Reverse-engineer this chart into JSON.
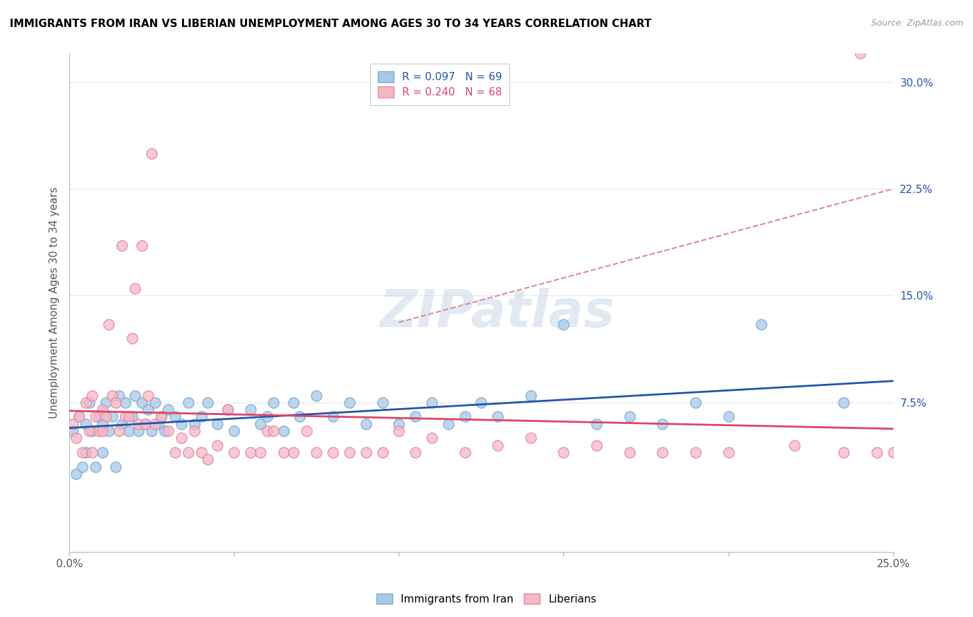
{
  "title": "IMMIGRANTS FROM IRAN VS LIBERIAN UNEMPLOYMENT AMONG AGES 30 TO 34 YEARS CORRELATION CHART",
  "source": "Source: ZipAtlas.com",
  "ylabel": "Unemployment Among Ages 30 to 34 years",
  "xlim": [
    0.0,
    0.25
  ],
  "ylim": [
    -0.03,
    0.32
  ],
  "xticks": [
    0.0,
    0.05,
    0.1,
    0.15,
    0.2,
    0.25
  ],
  "xticklabels": [
    "0.0%",
    "",
    "",
    "",
    "",
    "25.0%"
  ],
  "yticks_right": [
    0.075,
    0.15,
    0.225,
    0.3
  ],
  "yticklabels_right": [
    "7.5%",
    "15.0%",
    "22.5%",
    "30.0%"
  ],
  "blue_color": "#a8c8e8",
  "pink_color": "#f5b8c8",
  "blue_edge_color": "#7aaed0",
  "pink_edge_color": "#e888a0",
  "blue_line_color": "#2255aa",
  "pink_line_color": "#dd4466",
  "pink_dash_color": "#dd8899",
  "legend_blue_text": "R = 0.097   N = 69",
  "legend_pink_text": "R = 0.240   N = 68",
  "legend_label_blue": "Immigrants from Iran",
  "legend_label_pink": "Liberians",
  "watermark": "ZIPatlas",
  "grid_color": "#dddddd",
  "blue_scatter_x": [
    0.001,
    0.002,
    0.003,
    0.004,
    0.005,
    0.005,
    0.006,
    0.007,
    0.008,
    0.009,
    0.01,
    0.01,
    0.011,
    0.012,
    0.013,
    0.014,
    0.015,
    0.016,
    0.017,
    0.018,
    0.019,
    0.02,
    0.021,
    0.022,
    0.023,
    0.024,
    0.025,
    0.026,
    0.027,
    0.028,
    0.029,
    0.03,
    0.032,
    0.034,
    0.036,
    0.038,
    0.04,
    0.042,
    0.045,
    0.048,
    0.05,
    0.055,
    0.058,
    0.06,
    0.062,
    0.065,
    0.068,
    0.07,
    0.075,
    0.08,
    0.085,
    0.09,
    0.095,
    0.1,
    0.105,
    0.11,
    0.115,
    0.12,
    0.125,
    0.13,
    0.14,
    0.15,
    0.16,
    0.17,
    0.18,
    0.19,
    0.2,
    0.21,
    0.235
  ],
  "blue_scatter_y": [
    0.055,
    0.025,
    0.065,
    0.03,
    0.06,
    0.04,
    0.075,
    0.055,
    0.03,
    0.065,
    0.06,
    0.04,
    0.075,
    0.055,
    0.065,
    0.03,
    0.08,
    0.06,
    0.075,
    0.055,
    0.065,
    0.08,
    0.055,
    0.075,
    0.06,
    0.07,
    0.055,
    0.075,
    0.06,
    0.065,
    0.055,
    0.07,
    0.065,
    0.06,
    0.075,
    0.06,
    0.065,
    0.075,
    0.06,
    0.07,
    0.055,
    0.07,
    0.06,
    0.065,
    0.075,
    0.055,
    0.075,
    0.065,
    0.08,
    0.065,
    0.075,
    0.06,
    0.075,
    0.06,
    0.065,
    0.075,
    0.06,
    0.065,
    0.075,
    0.065,
    0.08,
    0.13,
    0.06,
    0.065,
    0.06,
    0.075,
    0.065,
    0.13,
    0.075
  ],
  "pink_scatter_x": [
    0.001,
    0.002,
    0.003,
    0.004,
    0.005,
    0.006,
    0.007,
    0.007,
    0.008,
    0.009,
    0.01,
    0.01,
    0.011,
    0.012,
    0.013,
    0.014,
    0.015,
    0.016,
    0.017,
    0.018,
    0.019,
    0.02,
    0.021,
    0.022,
    0.023,
    0.024,
    0.025,
    0.026,
    0.028,
    0.03,
    0.032,
    0.034,
    0.036,
    0.038,
    0.04,
    0.042,
    0.045,
    0.048,
    0.05,
    0.055,
    0.058,
    0.06,
    0.062,
    0.065,
    0.068,
    0.072,
    0.075,
    0.08,
    0.085,
    0.09,
    0.095,
    0.1,
    0.105,
    0.11,
    0.12,
    0.13,
    0.14,
    0.15,
    0.16,
    0.17,
    0.18,
    0.19,
    0.2,
    0.22,
    0.235,
    0.24,
    0.245,
    0.25
  ],
  "pink_scatter_y": [
    0.06,
    0.05,
    0.065,
    0.04,
    0.075,
    0.055,
    0.04,
    0.08,
    0.065,
    0.055,
    0.07,
    0.055,
    0.065,
    0.13,
    0.08,
    0.075,
    0.055,
    0.185,
    0.065,
    0.065,
    0.12,
    0.155,
    0.06,
    0.185,
    0.06,
    0.08,
    0.25,
    0.06,
    0.065,
    0.055,
    0.04,
    0.05,
    0.04,
    0.055,
    0.04,
    0.035,
    0.045,
    0.07,
    0.04,
    0.04,
    0.04,
    0.055,
    0.055,
    0.04,
    0.04,
    0.055,
    0.04,
    0.04,
    0.04,
    0.04,
    0.04,
    0.055,
    0.04,
    0.05,
    0.04,
    0.045,
    0.05,
    0.04,
    0.045,
    0.04,
    0.04,
    0.04,
    0.04,
    0.045,
    0.04,
    0.32,
    0.04,
    0.04
  ]
}
